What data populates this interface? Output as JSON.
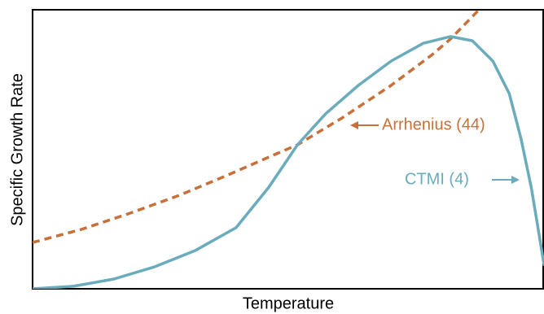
{
  "chart_data": {
    "type": "line",
    "x_label": "Temperature",
    "y_label": "Specific Growth Rate",
    "xlim": [
      0,
      100
    ],
    "ylim": [
      0,
      100
    ],
    "series": [
      {
        "name": "Arrhenius (44)",
        "color": "#c8703a",
        "dashed": true,
        "x": [
          0,
          9.6,
          19.1,
          28.7,
          38.2,
          46.2,
          51.8,
          60.5,
          70.1,
          78.0,
          81.7,
          87.3
        ],
        "values": [
          16.6,
          21.3,
          27.1,
          33.5,
          40.8,
          47.2,
          51.6,
          61.2,
          72.9,
          83.7,
          89.5,
          100
        ]
      },
      {
        "name": "CTMI (4)",
        "color": "#6aacbc",
        "dashed": false,
        "x": [
          0,
          8.0,
          15.9,
          23.9,
          31.8,
          39.8,
          46.2,
          51.8,
          57.3,
          63.7,
          70.1,
          76.4,
          81.7,
          86.0,
          90.0,
          93.2,
          95.5,
          97.5,
          98.7,
          100
        ],
        "values": [
          0,
          0.9,
          3.5,
          7.9,
          13.7,
          21.9,
          36.4,
          51.6,
          62.7,
          72.9,
          81.6,
          88.0,
          90.4,
          88.9,
          81.6,
          70.0,
          53.9,
          36.4,
          23.3,
          8.7
        ]
      }
    ]
  }
}
